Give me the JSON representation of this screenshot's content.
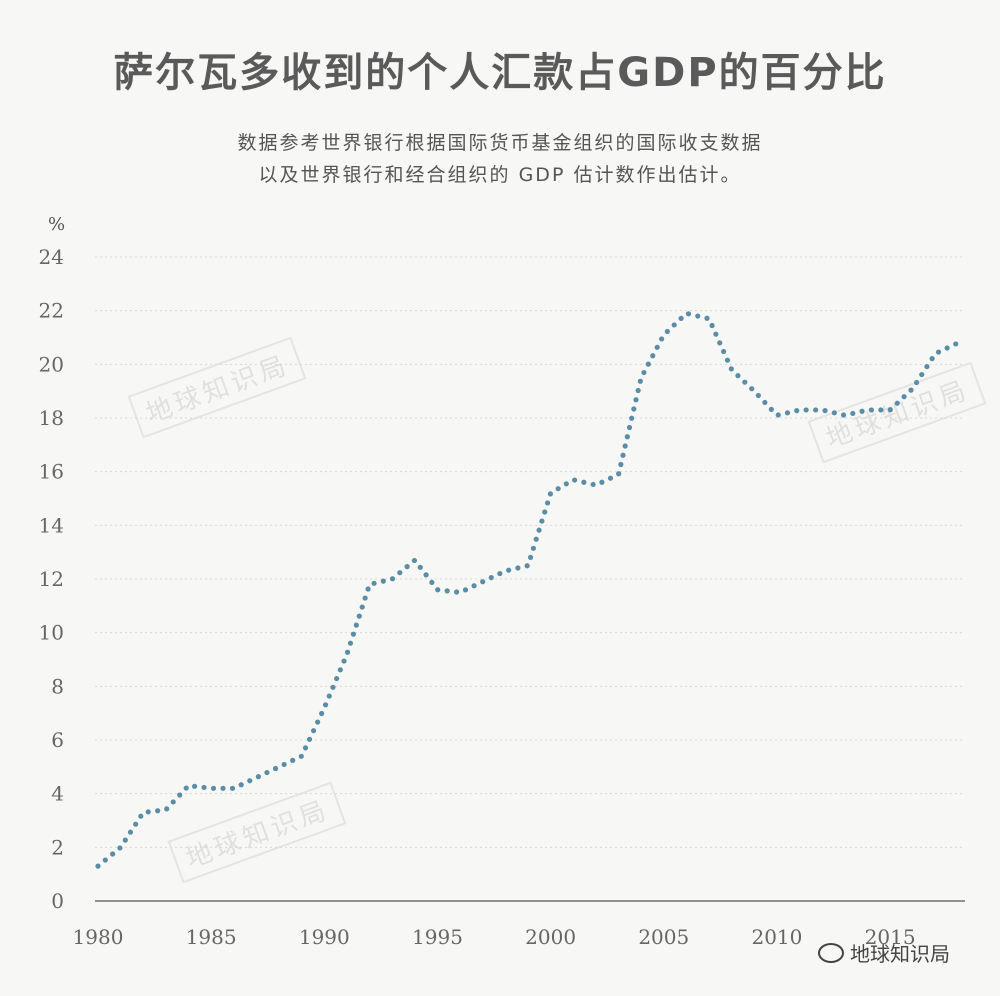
{
  "header": {
    "title": "萨尔瓦多收到的个人汇款占GDP的百分比",
    "subtitle_line1": "数据参考世界银行根据国际货币基金组织的国际收支数据",
    "subtitle_line2": "以及世界银行和经合组织的 GDP 估计数作出估计。"
  },
  "watermark": {
    "text": "地球知识局"
  },
  "brand": {
    "text": "地球知识局",
    "icon": "wechat-icon"
  },
  "chart_data": {
    "type": "line",
    "style": "dotted",
    "title": "萨尔瓦多收到的个人汇款占GDP的百分比",
    "ylabel": "%",
    "xlabel": "",
    "xlim": [
      1980,
      2018
    ],
    "ylim": [
      0,
      24
    ],
    "xticks": [
      1980,
      1985,
      1990,
      1995,
      2000,
      2005,
      2010,
      2015
    ],
    "yticks": [
      0,
      2,
      4,
      6,
      8,
      10,
      12,
      14,
      16,
      18,
      20,
      22,
      24
    ],
    "grid": true,
    "color": "#5a8ea6",
    "series": [
      {
        "x": [
          1980,
          1981,
          1982,
          1983,
          1984,
          1985,
          1986,
          1987,
          1988,
          1989,
          1990,
          1991,
          1992,
          1993,
          1994,
          1995,
          1996,
          1997,
          1998,
          1999,
          2000,
          2001,
          2002,
          2003,
          2004,
          2005,
          2006,
          2007,
          2008,
          2009,
          2010,
          2011,
          2012,
          2013,
          2014,
          2015,
          2016,
          2017,
          2018
        ],
        "y": [
          1.3,
          2.0,
          3.3,
          3.4,
          4.3,
          4.2,
          4.2,
          4.6,
          5.0,
          5.4,
          7.2,
          9.2,
          11.8,
          12.0,
          12.7,
          11.6,
          11.5,
          11.9,
          12.3,
          12.5,
          15.2,
          15.7,
          15.5,
          15.9,
          19.5,
          21.1,
          21.9,
          21.7,
          19.8,
          19.0,
          18.1,
          18.3,
          18.3,
          18.1,
          18.3,
          18.3,
          19.1,
          20.4,
          20.8
        ]
      }
    ]
  }
}
